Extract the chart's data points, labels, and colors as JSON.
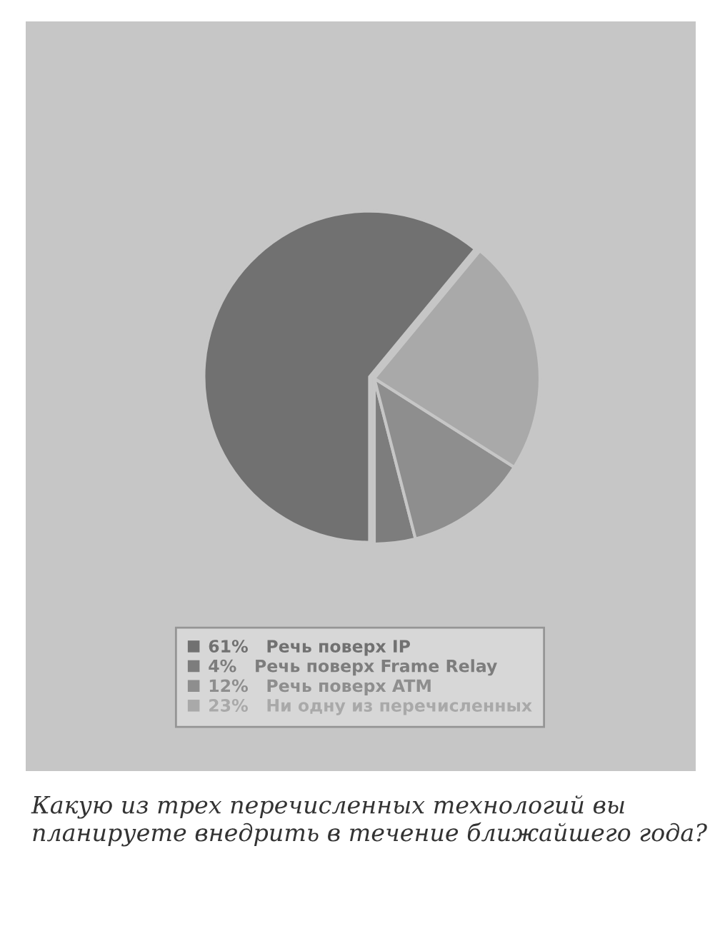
{
  "chart_data": {
    "type": "pie",
    "categories": [
      "Речь поверх IP",
      "Речь поверх Frame Relay",
      "Речь поверх ATM",
      "Ни одну из перечисленных"
    ],
    "values": [
      61,
      4,
      12,
      23
    ],
    "value_labels": [
      "61%",
      "4%",
      "12%",
      "23%"
    ],
    "colors": [
      "#717171",
      "#7d7d7d",
      "#8e8e8e",
      "#a9a9a9"
    ],
    "legend": "bottom",
    "annotations": [
      "Какую из трех перечисленных технологий вы планируете внедрить в течение ближайшего года?"
    ]
  }
}
